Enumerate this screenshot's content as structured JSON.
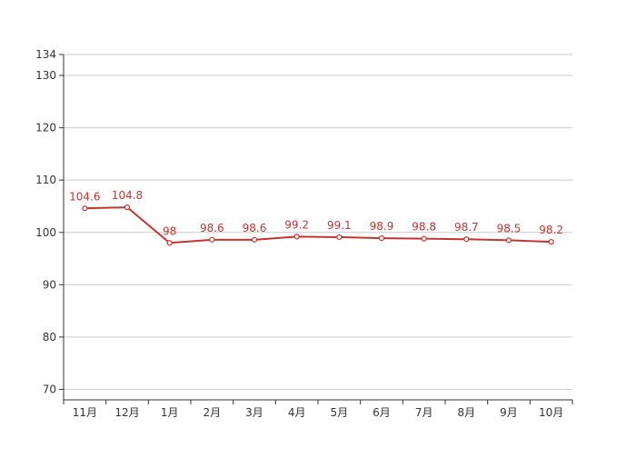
{
  "chart_data": {
    "type": "line",
    "categories": [
      "11月",
      "12月",
      "1月",
      "2月",
      "3月",
      "4月",
      "5月",
      "6月",
      "7月",
      "8月",
      "9月",
      "10月"
    ],
    "series": [
      {
        "values": [
          104.6,
          104.8,
          98,
          98.6,
          98.6,
          99.2,
          99.1,
          98.9,
          98.8,
          98.7,
          98.5,
          98.2
        ]
      }
    ],
    "ylim": [
      68,
      134
    ],
    "yticks": [
      70,
      80,
      90,
      100,
      110,
      120,
      130,
      134
    ],
    "grid": true,
    "data_labels": true,
    "colors": {
      "line": "#c23531",
      "axis": "#333333",
      "grid": "#cccccc",
      "label": "#c23531",
      "tick_text": "#333333"
    }
  }
}
